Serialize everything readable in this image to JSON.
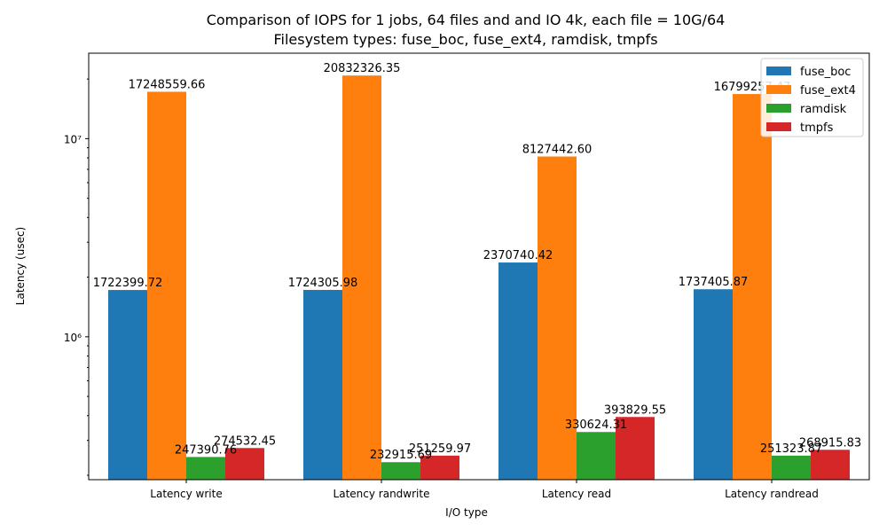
{
  "chart_data": {
    "type": "bar",
    "title": "Comparison of IOPS for 1 jobs, 64 files and  and IO 4k, each file = 10G/64",
    "subtitle": "Filesystem types: fuse_boc, fuse_ext4, ramdisk, tmpfs",
    "xlabel": "I/O type",
    "ylabel": "Latency (usec)",
    "y_scale": "log",
    "ylim": [
      190000,
      27000000
    ],
    "y_ticks": [
      {
        "value": 1000000,
        "label": "10⁶"
      },
      {
        "value": 10000000,
        "label": "10⁷"
      }
    ],
    "legend_position": "top-right",
    "categories": [
      "Latency write",
      "Latency randwrite",
      "Latency read",
      "Latency randread"
    ],
    "series": [
      {
        "name": "fuse_boc",
        "color": "#1f77b4",
        "values": [
          1722399.72,
          1724305.98,
          2370740.42,
          1737405.87
        ],
        "labels": [
          "1722399.72",
          "1724305.98",
          "2370740.42",
          "1737405.87"
        ]
      },
      {
        "name": "fuse_ext4",
        "color": "#ff7f0e",
        "values": [
          17248559.66,
          20832326.35,
          8127442.6,
          16799257.47
        ],
        "labels": [
          "17248559.66",
          "20832326.35",
          "8127442.60",
          "16799257.47"
        ]
      },
      {
        "name": "ramdisk",
        "color": "#2ca02c",
        "values": [
          247390.76,
          232915.69,
          330624.31,
          251323.87
        ],
        "labels": [
          "247390.76",
          "232915.69",
          "330624.31",
          "251323.87"
        ]
      },
      {
        "name": "tmpfs",
        "color": "#d62728",
        "values": [
          274532.45,
          251259.97,
          393829.55,
          268915.83
        ],
        "labels": [
          "274532.45",
          "251259.97",
          "393829.55",
          "268915.83"
        ]
      }
    ]
  }
}
